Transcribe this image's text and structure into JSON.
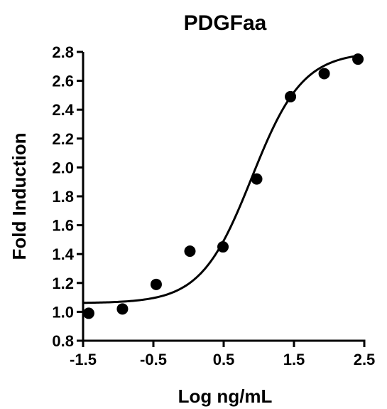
{
  "chart_data": {
    "type": "scatter",
    "title": "PDGFaa",
    "xlabel": "Log ng/mL",
    "ylabel": "Fold Induction",
    "xlim": [
      -1.5,
      2.5
    ],
    "ylim": [
      0.8,
      2.8
    ],
    "x_ticks": [
      -1.5,
      -0.5,
      0.5,
      1.5,
      2.5
    ],
    "x_tick_labels": [
      "-1.5",
      "-0.5",
      "0.5",
      "1.5",
      "2.5"
    ],
    "y_ticks": [
      0.8,
      1.0,
      1.2,
      1.4,
      1.6,
      1.8,
      2.0,
      2.2,
      2.4,
      2.6,
      2.8
    ],
    "y_tick_labels": [
      "0.8",
      "1.0",
      "1.2",
      "1.4",
      "1.6",
      "1.8",
      "2.0",
      "2.2",
      "2.4",
      "2.6",
      "2.8"
    ],
    "grid": false,
    "legend": "none",
    "series": [
      {
        "points": [
          {
            "x": -1.42,
            "y": 0.99
          },
          {
            "x": -0.94,
            "y": 1.02
          },
          {
            "x": -0.46,
            "y": 1.19
          },
          {
            "x": 0.02,
            "y": 1.42
          },
          {
            "x": 0.49,
            "y": 1.45
          },
          {
            "x": 0.97,
            "y": 1.92
          },
          {
            "x": 1.45,
            "y": 2.49
          },
          {
            "x": 1.93,
            "y": 2.65
          },
          {
            "x": 2.41,
            "y": 2.75
          }
        ]
      }
    ],
    "fit_curve": {
      "model": "4PL sigmoid",
      "bottom": 1.06,
      "top": 2.8,
      "log_ec50": 0.9,
      "hill_slope": 1.2,
      "x_range": [
        -1.5,
        2.4
      ]
    },
    "colors": {
      "points": "#000000",
      "curve": "#000000",
      "axes": "#000000"
    }
  }
}
